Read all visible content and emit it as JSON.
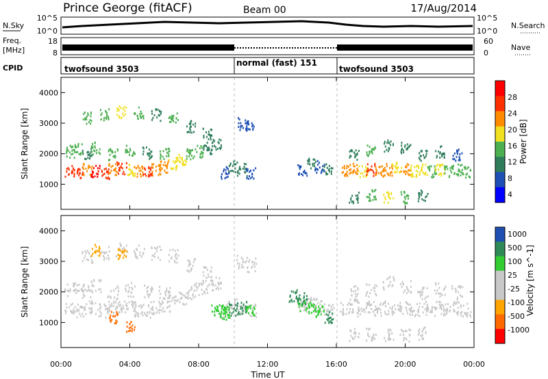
{
  "header": {
    "station": "Prince George (fitACF)",
    "beam": "Beam 00",
    "date": "17/Aug/2014"
  },
  "noise_panel": {
    "left_label": "N.Sky",
    "right_label": "N.Search",
    "left_ticks": [
      "10^5",
      "10^0"
    ],
    "right_ticks": [
      "10^5",
      "10^0"
    ]
  },
  "freq_panel": {
    "left_label_line1": "Freq.",
    "left_label_line2": "[MHz]",
    "right_label": "Nave",
    "left_ticks": [
      "18",
      "8"
    ],
    "right_ticks": [
      "60",
      "0"
    ]
  },
  "cpid_panel": {
    "label": "CPID",
    "segments": [
      {
        "label": "twofsound 3503",
        "start_hour": 0,
        "end_hour": 10
      },
      {
        "label": "normal (fast) 151",
        "start_hour": 10,
        "end_hour": 16
      },
      {
        "label": "twofsound 3503",
        "start_hour": 16,
        "end_hour": 24
      }
    ]
  },
  "colors": {
    "power_scale": [
      "#0000ff",
      "#1e4fb4",
      "#2f7d5a",
      "#4caf50",
      "#f0e020",
      "#ff8c00",
      "#ff3000",
      "#ff0000"
    ],
    "velocity_scale": [
      "#ff0000",
      "#ff6a00",
      "#ffa500",
      "#c8c8c8",
      "#c8c8c8",
      "#32cd32",
      "#2e8b57",
      "#1f4fb0"
    ],
    "ground_scatter": "#c8c8c8"
  },
  "chart_data": [
    {
      "type": "heatmap",
      "name": "power",
      "ylabel": "Slant Range [km]",
      "y_ticks": [
        "4000",
        "3000",
        "2000",
        "1000"
      ],
      "ylim": [
        180,
        4500
      ],
      "xlim": [
        0,
        24
      ],
      "colorbar_label": "Power [dB]",
      "colorbar_ticks": [
        "28",
        "24",
        "20",
        "16",
        "12",
        "8",
        "4"
      ],
      "cells": [
        [
          0.5,
          1450,
          24
        ],
        [
          1,
          1400,
          26
        ],
        [
          1.5,
          1500,
          22
        ],
        [
          2,
          1450,
          28
        ],
        [
          2.5,
          1400,
          24
        ],
        [
          3,
          1500,
          20
        ],
        [
          3.5,
          1550,
          26
        ],
        [
          4,
          1500,
          18
        ],
        [
          4.5,
          1450,
          22
        ],
        [
          5,
          1400,
          24
        ],
        [
          5.5,
          1500,
          20
        ],
        [
          6,
          1600,
          22
        ],
        [
          6.5,
          1700,
          18
        ],
        [
          7,
          1800,
          16
        ],
        [
          7.5,
          2000,
          14
        ],
        [
          8,
          2100,
          12
        ],
        [
          8.5,
          2200,
          10
        ],
        [
          9,
          2300,
          8
        ],
        [
          0.5,
          2100,
          12
        ],
        [
          1,
          2150,
          14
        ],
        [
          1.5,
          2050,
          10
        ],
        [
          2,
          2200,
          12
        ],
        [
          3,
          2000,
          14
        ],
        [
          4,
          2100,
          12
        ],
        [
          5,
          2050,
          10
        ],
        [
          6,
          2000,
          12
        ],
        [
          1.5,
          3200,
          14
        ],
        [
          2.5,
          3300,
          12
        ],
        [
          3.5,
          3400,
          16
        ],
        [
          4.5,
          3350,
          12
        ],
        [
          5.5,
          3300,
          10
        ],
        [
          6.5,
          3200,
          12
        ],
        [
          7.5,
          2900,
          10
        ],
        [
          8.5,
          2700,
          8
        ],
        [
          9.5,
          1400,
          6
        ],
        [
          10,
          1600,
          8
        ],
        [
          10.5,
          1500,
          10
        ],
        [
          11,
          1400,
          6
        ],
        [
          10.5,
          3000,
          6
        ],
        [
          11,
          2900,
          4
        ],
        [
          14,
          1500,
          6
        ],
        [
          14.5,
          1700,
          8
        ],
        [
          15,
          1600,
          6
        ],
        [
          15.5,
          1500,
          8
        ],
        [
          16.5,
          1500,
          20
        ],
        [
          17,
          1550,
          22
        ],
        [
          17.5,
          1450,
          18
        ],
        [
          18,
          1500,
          24
        ],
        [
          18.5,
          1450,
          20
        ],
        [
          19,
          1500,
          22
        ],
        [
          19.5,
          1550,
          18
        ],
        [
          20,
          1500,
          20
        ],
        [
          20.5,
          1450,
          16
        ],
        [
          21,
          1500,
          18
        ],
        [
          21.5,
          1450,
          14
        ],
        [
          22,
          1500,
          16
        ],
        [
          22.5,
          1450,
          12
        ],
        [
          23,
          1500,
          14
        ],
        [
          23.5,
          1450,
          12
        ],
        [
          17,
          2000,
          10
        ],
        [
          18,
          2100,
          12
        ],
        [
          19,
          2300,
          10
        ],
        [
          20,
          2200,
          8
        ],
        [
          21,
          2000,
          10
        ],
        [
          22,
          2100,
          8
        ],
        [
          23,
          2000,
          6
        ],
        [
          17,
          600,
          10
        ],
        [
          18,
          650,
          12
        ],
        [
          19,
          600,
          16
        ],
        [
          20,
          600,
          14
        ],
        [
          21,
          650,
          10
        ]
      ]
    },
    {
      "type": "heatmap",
      "name": "velocity",
      "ylabel": "Slant Range [km]",
      "y_ticks": [
        "4000",
        "3000",
        "2000",
        "1000"
      ],
      "ylim": [
        180,
        4500
      ],
      "xlim": [
        0,
        24
      ],
      "colorbar_label": "Velocity [m s^-1]",
      "colorbar_ticks": [
        "1000",
        "500",
        "100",
        "25",
        "-25",
        "-100",
        "-500",
        "-1000"
      ],
      "cells": [
        [
          9,
          1400,
          60
        ],
        [
          9.5,
          1500,
          80
        ],
        [
          10,
          1450,
          100
        ],
        [
          10.5,
          1500,
          120
        ],
        [
          11,
          1400,
          90
        ],
        [
          9.5,
          1300,
          70
        ],
        [
          14,
          1600,
          80
        ],
        [
          14.5,
          1500,
          60
        ],
        [
          15,
          1400,
          50
        ],
        [
          13.5,
          1900,
          400
        ],
        [
          14,
          1800,
          300
        ],
        [
          15.5,
          1200,
          200
        ],
        [
          3,
          1200,
          -200
        ],
        [
          4,
          900,
          -150
        ],
        [
          2,
          3400,
          -80
        ],
        [
          3.5,
          3300,
          -60
        ]
      ]
    }
  ],
  "x_axis": {
    "label": "Time UT",
    "ticks": [
      "00:00",
      "04:00",
      "08:00",
      "12:00",
      "16:00",
      "20:00",
      "00:00"
    ]
  }
}
